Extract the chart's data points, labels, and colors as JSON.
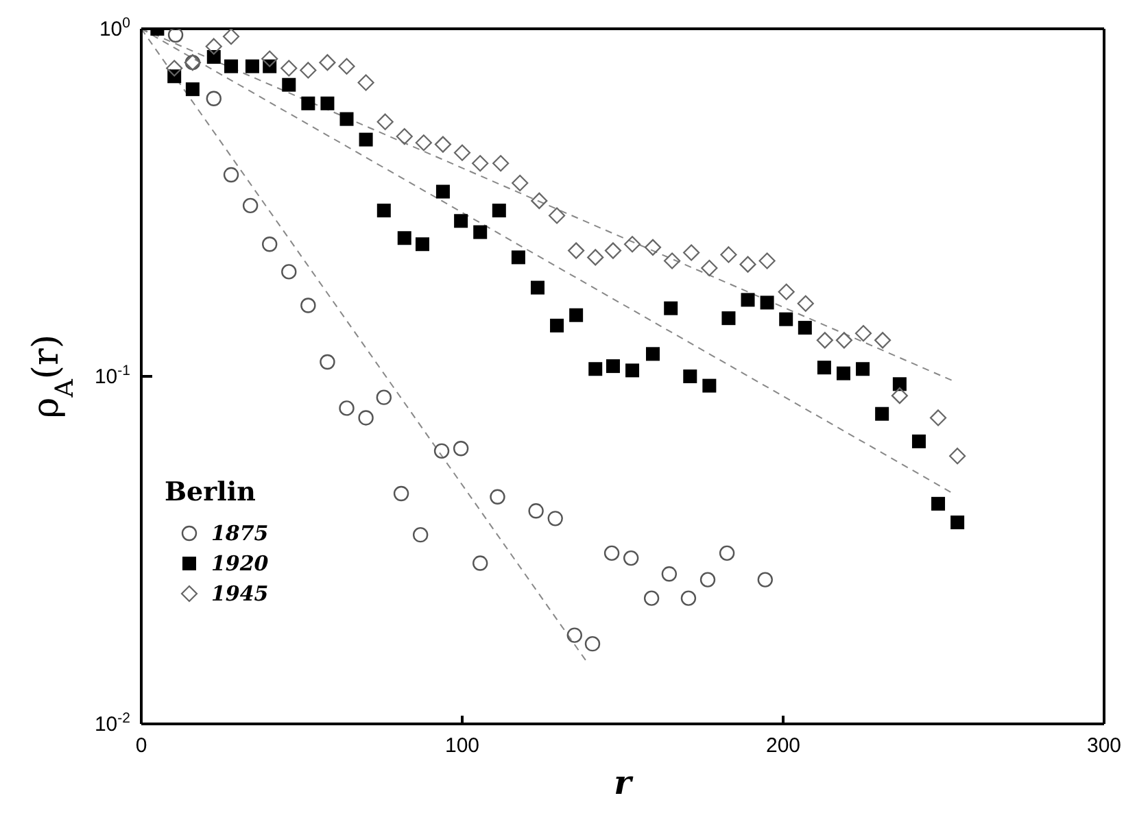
{
  "chart_data": {
    "type": "scatter",
    "xlabel": "r",
    "ylabel": "ρ$_{A}$(r)",
    "legend_title": "Berlin",
    "legend": "left",
    "log": "y",
    "grid": false,
    "xlim": [
      0,
      300
    ],
    "xticks": [
      0,
      100,
      200,
      300
    ],
    "ylim": [
      0.01,
      1
    ],
    "yticks": [
      {
        "value": 0.01,
        "label": "10$^{-2}$"
      },
      {
        "value": 0.1,
        "label": "10$^{-1}$"
      },
      {
        "value": 1,
        "label": "10$^{0}$"
      }
    ],
    "series": [
      {
        "name": "1875",
        "color": "#555555",
        "marker": "circle",
        "x": [
          10.7,
          16,
          22.6,
          28,
          34,
          40,
          46,
          52,
          58,
          64,
          70,
          75.6,
          81,
          87,
          93.6,
          99.6,
          105.6,
          111,
          123,
          129,
          135,
          140.6,
          146.6,
          152.6,
          159,
          164.5,
          170.5,
          176.5,
          182.5,
          194.4
        ],
        "values": [
          0.96,
          0.8,
          0.63,
          0.38,
          0.31,
          0.24,
          0.2,
          0.16,
          0.11,
          0.081,
          0.076,
          0.087,
          0.046,
          0.035,
          0.061,
          0.062,
          0.029,
          0.045,
          0.041,
          0.039,
          0.018,
          0.017,
          0.031,
          0.03,
          0.023,
          0.027,
          0.023,
          0.026,
          0.031,
          0.026
        ]
      },
      {
        "name": "1920",
        "color": "#000000",
        "marker": "square",
        "x": [
          5,
          10.3,
          16,
          22.6,
          28,
          34.6,
          40,
          46,
          52,
          58,
          64,
          70,
          75.6,
          82,
          87.6,
          94,
          99.6,
          105.6,
          111.5,
          117.5,
          123.5,
          129.5,
          135.5,
          141.5,
          147,
          153,
          159.4,
          165,
          171,
          177,
          183,
          189,
          195,
          200.9,
          206.8,
          212.8,
          218.8,
          224.8,
          230.8,
          236.3,
          242.3,
          248.3,
          254.3
        ],
        "values": [
          1,
          0.73,
          0.67,
          0.83,
          0.78,
          0.78,
          0.78,
          0.69,
          0.61,
          0.61,
          0.55,
          0.48,
          0.3,
          0.25,
          0.24,
          0.34,
          0.28,
          0.26,
          0.3,
          0.22,
          0.18,
          0.14,
          0.15,
          0.105,
          0.107,
          0.104,
          0.116,
          0.157,
          0.1,
          0.094,
          0.147,
          0.166,
          0.163,
          0.146,
          0.138,
          0.106,
          0.102,
          0.105,
          0.078,
          0.095,
          0.065,
          0.043,
          0.038
        ]
      },
      {
        "name": "1945",
        "color": "#666666",
        "marker": "diamond",
        "x": [
          10.3,
          16,
          22.6,
          28,
          40,
          46,
          52,
          58,
          64,
          70,
          76,
          82,
          88,
          94,
          100,
          105.6,
          112,
          118,
          124,
          129.5,
          135.5,
          141.5,
          147,
          153,
          159.4,
          165.4,
          171.4,
          177,
          183,
          189,
          195,
          201,
          207,
          213,
          219,
          225,
          231,
          236.3,
          248.3,
          254.3
        ],
        "values": [
          0.77,
          0.8,
          0.89,
          0.95,
          0.82,
          0.77,
          0.76,
          0.8,
          0.78,
          0.7,
          0.54,
          0.49,
          0.47,
          0.465,
          0.44,
          0.41,
          0.41,
          0.36,
          0.32,
          0.29,
          0.23,
          0.22,
          0.23,
          0.24,
          0.235,
          0.215,
          0.227,
          0.205,
          0.224,
          0.21,
          0.215,
          0.175,
          0.162,
          0.127,
          0.127,
          0.133,
          0.127,
          0.088,
          0.076,
          0.059
        ]
      },
      {
        "type": "line",
        "color": "#888888",
        "line_style": "dashed",
        "x": [
          0,
          139
        ],
        "values": [
          1,
          0.015
        ]
      },
      {
        "type": "line",
        "color": "#888888",
        "line_style": "dashed",
        "x": [
          0,
          253
        ],
        "values": [
          1,
          0.046
        ]
      },
      {
        "type": "line",
        "color": "#888888",
        "line_style": "dashed",
        "x": [
          0,
          253
        ],
        "values": [
          1,
          0.097
        ]
      }
    ]
  }
}
